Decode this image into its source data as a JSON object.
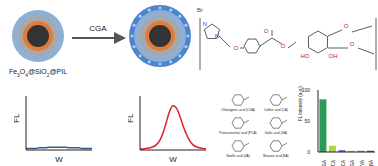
{
  "diagram": {
    "particle_label": "Fe3O4@SiO2@PIL",
    "arrow_label": "CGA",
    "structure_labels": [
      "N",
      "N",
      "Br",
      "O",
      "O",
      "O",
      "HO",
      "OH",
      "O",
      "O"
    ],
    "molecules": [
      "Chlorogenic acid (CGA)",
      "Caffeic acid (CA)",
      "Protocatechuic acid (PCA)",
      "Gallic acid (GA)",
      "Vanillic acid (VA)",
      "Benzoic acid (BA)"
    ]
  },
  "chart_data": [
    {
      "type": "line",
      "x_label": "W",
      "y_label": "FL",
      "x": [
        0,
        1,
        2,
        3,
        4,
        5,
        6,
        7,
        8,
        9,
        10,
        11,
        12,
        13,
        14,
        15,
        16,
        17,
        18,
        19,
        20
      ],
      "values": [
        3,
        3,
        3,
        3,
        4,
        4,
        4,
        5,
        5,
        5,
        5,
        5,
        5,
        4,
        4,
        4,
        4,
        3,
        3,
        3,
        3
      ],
      "color": "#3a5a8c",
      "xlim": [
        0,
        20
      ],
      "ylim": [
        0,
        100
      ],
      "tick_labels": false
    },
    {
      "type": "line",
      "x_label": "W",
      "y_label": "FL",
      "x": [
        0,
        1,
        2,
        3,
        4,
        5,
        6,
        7,
        8,
        9,
        10,
        11,
        12,
        13,
        14,
        15,
        16,
        17,
        18,
        19,
        20
      ],
      "values": [
        2,
        2,
        3,
        4,
        6,
        10,
        18,
        32,
        52,
        72,
        82,
        78,
        64,
        46,
        30,
        18,
        10,
        6,
        4,
        3,
        2
      ],
      "color": "#e02020",
      "xlim": [
        0,
        20
      ],
      "ylim": [
        0,
        100
      ],
      "tick_labels": false
    },
    {
      "type": "bar",
      "y_label": "FL Intensity (a.u.)",
      "categories": [
        "CGA",
        "CA",
        "PCA",
        "GA",
        "VA",
        "BA"
      ],
      "values": [
        85,
        10,
        3,
        2,
        2,
        2
      ],
      "colors": [
        "#2e9b5a",
        "#b5d334",
        "#4472c4",
        "#ff9f40",
        "#8c8c8c",
        "#d62728"
      ],
      "ylim": [
        0,
        100
      ],
      "yticks": [
        0,
        50,
        100
      ]
    }
  ]
}
